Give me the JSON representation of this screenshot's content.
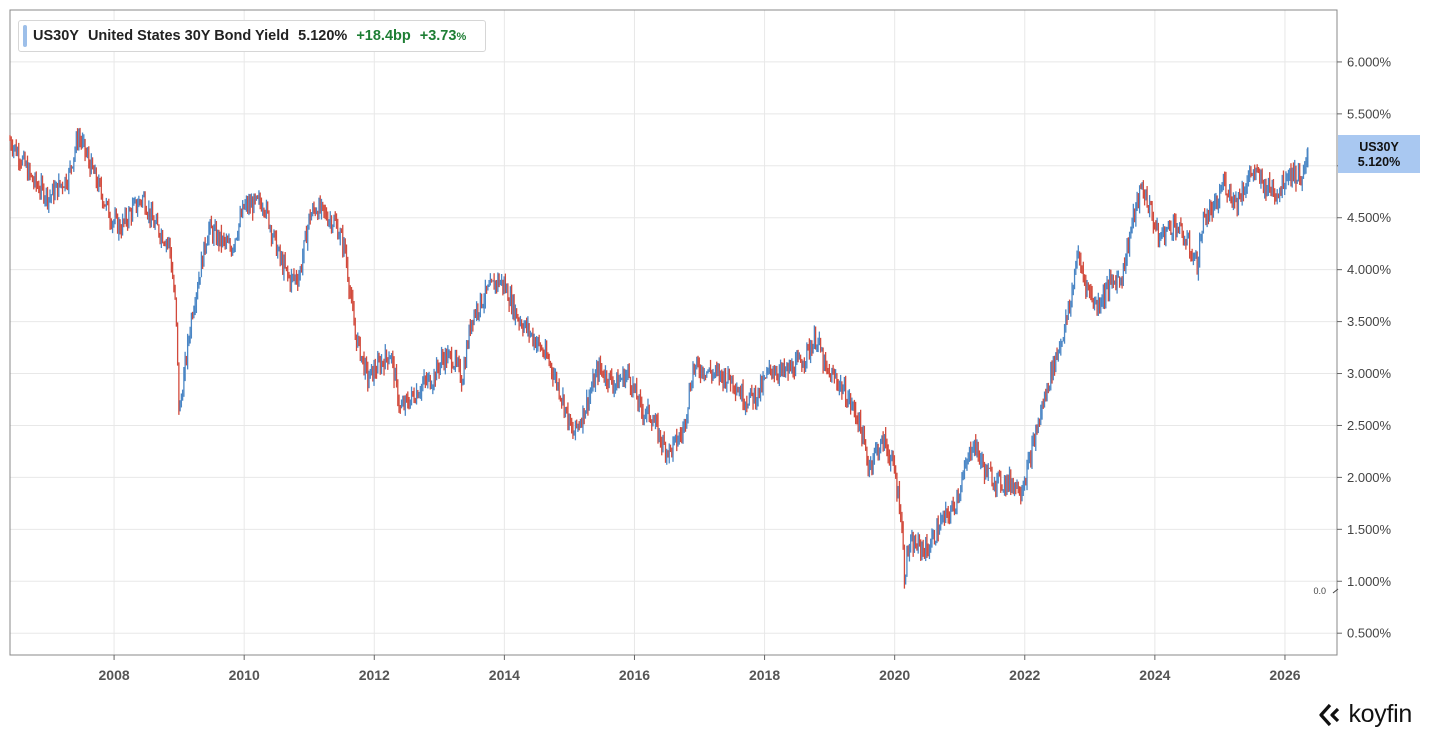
{
  "legend": {
    "ticker": "US30Y",
    "name": "United States 30Y Bond Yield",
    "value": "5.120%",
    "change_bp": "+18.4bp",
    "change_pct": "+3.73",
    "pct_sign": "%"
  },
  "price_tag": {
    "ticker": "US30Y",
    "value": "5.120%"
  },
  "zero_label": "0.0",
  "brand": {
    "name": "koyfin"
  },
  "colors": {
    "up": "#4a86c5",
    "down": "#d24a3c",
    "grid": "#e8e8e8",
    "tag_bg": "#a9c8f1",
    "positive_text": "#1e7e34"
  },
  "chart_data": {
    "type": "line",
    "title": "",
    "xlabel": "",
    "ylabel": "",
    "x_ticks": [
      "2008",
      "2010",
      "2012",
      "2014",
      "2016",
      "2018",
      "2020",
      "2022",
      "2024",
      "2026"
    ],
    "y_ticks": [
      "0.500%",
      "1.000%",
      "1.500%",
      "2.000%",
      "2.500%",
      "3.000%",
      "3.500%",
      "4.000%",
      "4.500%",
      "5.000%",
      "5.500%",
      "6.000%"
    ],
    "xlim": [
      2006.4,
      2026.8
    ],
    "ylim": [
      0.29,
      6.5
    ],
    "grid": true,
    "series": [
      {
        "values_description_free": true,
        "x": [
          2006.4,
          2006.55,
          2006.75,
          2007.0,
          2007.3,
          2007.45,
          2007.7,
          2007.95,
          2008.1,
          2008.25,
          2008.45,
          2008.6,
          2008.85,
          2008.95,
          2009.0,
          2009.1,
          2009.2,
          2009.45,
          2009.6,
          2009.8,
          2010.0,
          2010.3,
          2010.55,
          2010.7,
          2010.85,
          2011.0,
          2011.1,
          2011.4,
          2011.55,
          2011.7,
          2011.9,
          2012.1,
          2012.25,
          2012.4,
          2012.55,
          2012.75,
          2012.9,
          2013.05,
          2013.2,
          2013.35,
          2013.5,
          2013.7,
          2013.9,
          2014.0,
          2014.2,
          2014.5,
          2014.7,
          2014.9,
          2015.05,
          2015.2,
          2015.45,
          2015.7,
          2015.9,
          2016.1,
          2016.25,
          2016.45,
          2016.55,
          2016.75,
          2016.9,
          2017.05,
          2017.2,
          2017.5,
          2017.7,
          2017.9,
          2018.1,
          2018.3,
          2018.55,
          2018.8,
          2018.95,
          2019.1,
          2019.25,
          2019.45,
          2019.6,
          2019.7,
          2019.85,
          2020.0,
          2020.1,
          2020.15,
          2020.2,
          2020.3,
          2020.5,
          2020.7,
          2020.9,
          2021.1,
          2021.2,
          2021.4,
          2021.6,
          2021.8,
          2021.95,
          2022.05,
          2022.2,
          2022.4,
          2022.55,
          2022.7,
          2022.8,
          2022.95,
          2023.1,
          2023.3,
          2023.5,
          2023.65,
          2023.8,
          2023.95,
          2024.05,
          2024.3,
          2024.5,
          2024.65,
          2024.75,
          2024.95,
          2025.05,
          2025.25,
          2025.5,
          2025.7,
          2025.9,
          2026.05,
          2026.2,
          2026.3,
          2026.35
        ],
        "y": [
          5.25,
          5.1,
          4.85,
          4.7,
          4.9,
          5.3,
          4.9,
          4.5,
          4.4,
          4.55,
          4.7,
          4.45,
          4.25,
          3.6,
          2.6,
          3.1,
          3.6,
          4.4,
          4.3,
          4.2,
          4.6,
          4.65,
          4.1,
          3.9,
          3.95,
          4.5,
          4.6,
          4.45,
          4.2,
          3.4,
          2.95,
          3.1,
          3.2,
          2.65,
          2.75,
          2.9,
          2.95,
          3.15,
          3.15,
          2.95,
          3.55,
          3.75,
          3.9,
          3.85,
          3.55,
          3.3,
          3.1,
          2.75,
          2.4,
          2.6,
          3.05,
          2.9,
          3.0,
          2.65,
          2.6,
          2.3,
          2.25,
          2.45,
          3.05,
          3.05,
          3.0,
          2.95,
          2.75,
          2.8,
          3.05,
          3.0,
          3.1,
          3.35,
          3.0,
          2.95,
          2.8,
          2.55,
          2.1,
          2.25,
          2.35,
          2.05,
          1.65,
          1.05,
          1.3,
          1.35,
          1.3,
          1.55,
          1.7,
          2.1,
          2.35,
          2.05,
          1.95,
          1.95,
          1.9,
          2.1,
          2.5,
          3.0,
          3.3,
          3.65,
          4.15,
          3.85,
          3.65,
          3.85,
          3.95,
          4.45,
          4.8,
          4.55,
          4.3,
          4.45,
          4.25,
          4.05,
          4.5,
          4.6,
          4.85,
          4.65,
          4.95,
          4.8,
          4.75,
          4.95,
          4.9,
          4.9,
          5.12
        ]
      }
    ]
  }
}
